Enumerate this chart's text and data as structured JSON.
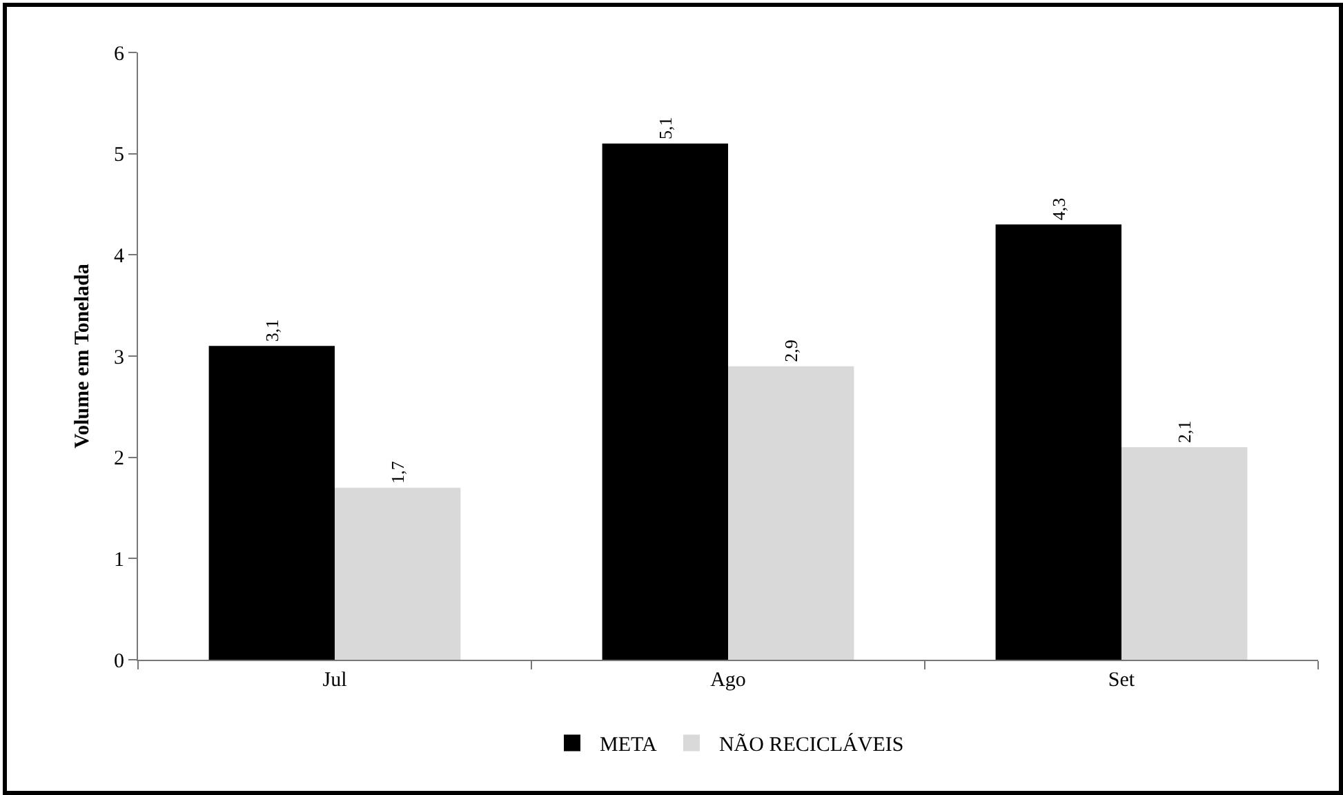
{
  "chart_data": {
    "type": "bar",
    "ylabel": "Volume em Tonelada",
    "categories": [
      "Jul",
      "Ago",
      "Set"
    ],
    "series": [
      {
        "name": "META",
        "color": "#000000",
        "values": [
          3.1,
          5.1,
          4.3
        ],
        "value_labels": [
          "3,1",
          "5,1",
          "4,3"
        ]
      },
      {
        "name": "NÃO RECICLÁVEIS",
        "color": "#d9d9d9",
        "values": [
          1.7,
          2.9,
          2.1
        ],
        "value_labels": [
          "1,7",
          "2,9",
          "2,1"
        ]
      }
    ],
    "ylim": [
      0,
      6
    ],
    "yticks": [
      0,
      1,
      2,
      3,
      4,
      5,
      6
    ],
    "grid": false,
    "legend": "bottom"
  }
}
